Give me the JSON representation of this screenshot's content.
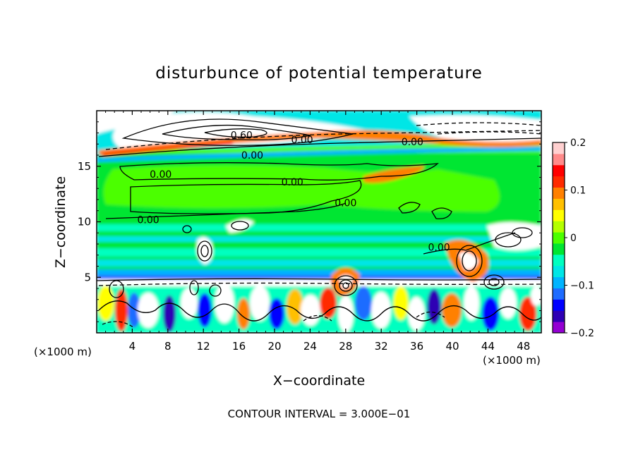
{
  "chart_data": {
    "type": "heatmap",
    "title": "disturbunce of potential temperature",
    "xlabel": "X−coordinate",
    "ylabel": "Z−coordinate",
    "x_unit_left": "(×1000 m)",
    "x_unit_right": "(×1000 m)",
    "footer": "CONTOUR INTERVAL = 3.000E−01",
    "xlim": [
      0,
      50
    ],
    "ylim": [
      0,
      20
    ],
    "x_ticks": [
      4,
      8,
      12,
      16,
      20,
      24,
      28,
      32,
      36,
      40,
      44,
      48
    ],
    "y_ticks": [
      5,
      10,
      15
    ],
    "colorbar": {
      "range": [
        -0.2,
        0.2
      ],
      "tick_labels": [
        "0.2",
        "0.1",
        "0",
        "−0.1",
        "−0.2"
      ],
      "tick_values": [
        0.2,
        0.1,
        0,
        -0.1,
        -0.2
      ],
      "colors": [
        "#9400d3",
        "#2f00b4",
        "#0000ff",
        "#1e6cff",
        "#00b4ff",
        "#00e6e6",
        "#00ffc0",
        "#00e632",
        "#4cff00",
        "#b4ff00",
        "#ffff00",
        "#ffc000",
        "#ff8000",
        "#ff2a00",
        "#ff0000",
        "#ff8a8a",
        "#ffd0d0"
      ]
    },
    "contour_labels": [
      {
        "text": "0.60",
        "x": 16.3,
        "y": 17.8
      },
      {
        "text": "0.00",
        "x": 23.1,
        "y": 17.4
      },
      {
        "text": "0.00",
        "x": 17.5,
        "y": 16.0
      },
      {
        "text": "0.00",
        "x": 7.2,
        "y": 14.3
      },
      {
        "text": "0.00",
        "x": 22.0,
        "y": 13.6
      },
      {
        "text": "0.00",
        "x": 28.0,
        "y": 11.7
      },
      {
        "text": "0.00",
        "x": 5.8,
        "y": 10.2
      },
      {
        "text": "0.00",
        "x": 35.5,
        "y": 17.2
      },
      {
        "text": "0.00",
        "x": 38.5,
        "y": 7.7
      }
    ]
  }
}
